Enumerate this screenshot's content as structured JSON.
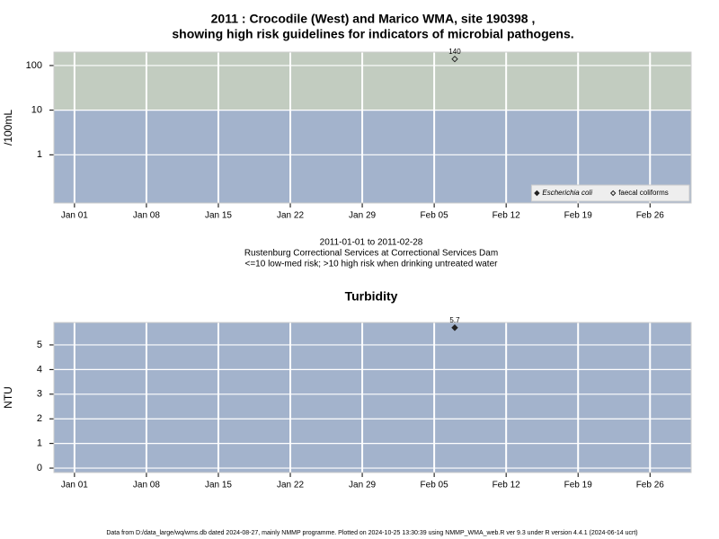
{
  "chart_data": [
    {
      "type": "scatter",
      "title": "2011 : Crocodile (West) and Marico WMA, site 190398 ,",
      "title2": "showing high risk guidelines for indicators of microbial pathogens.",
      "subtitle": [
        "2011-01-01 to 2011-02-28",
        "Rustenburg Correctional Services at Correctional Services Dam",
        "<=10 low-med risk; >10 high risk when drinking untreated water"
      ],
      "ylabel": "/100mL",
      "log_y": true,
      "x": [
        "2011-02-07"
      ],
      "series": [
        {
          "name": "Escherichia coli",
          "color": "#222222",
          "marker": "filled",
          "values": [
            null
          ]
        },
        {
          "name": "faecal coliforms",
          "color": "#222222",
          "marker": "open",
          "values": [
            140
          ]
        }
      ],
      "xlim": [
        "2010-12-30",
        "2011-03-02"
      ],
      "xticks": [
        {
          "value": "2011-01-01",
          "label": "Jan 01"
        },
        {
          "value": "2011-01-08",
          "label": "Jan 08"
        },
        {
          "value": "2011-01-15",
          "label": "Jan 15"
        },
        {
          "value": "2011-01-22",
          "label": "Jan 22"
        },
        {
          "value": "2011-01-29",
          "label": "Jan 29"
        },
        {
          "value": "2011-02-05",
          "label": "Feb 05"
        },
        {
          "value": "2011-02-12",
          "label": "Feb 12"
        },
        {
          "value": "2011-02-19",
          "label": "Feb 19"
        },
        {
          "value": "2011-02-26",
          "label": "Feb 26"
        }
      ],
      "ylim": [
        0.083,
        200
      ],
      "yticks": [
        1,
        10,
        100
      ],
      "threshold": 10,
      "plot_bg": "#a3b3cc",
      "above_color": "#c2ccc0",
      "grid": true,
      "legend": "bottom-right"
    },
    {
      "type": "scatter",
      "title": "Turbidity",
      "ylabel": "NTU",
      "log_y": false,
      "x": [
        "2011-02-07"
      ],
      "series": [
        {
          "color": "#222222",
          "marker": "filled",
          "values": [
            5.7
          ]
        }
      ],
      "xlim": [
        "2010-12-30",
        "2011-03-02"
      ],
      "xticks": [
        {
          "value": "2011-01-01",
          "label": "Jan 01"
        },
        {
          "value": "2011-01-08",
          "label": "Jan 08"
        },
        {
          "value": "2011-01-15",
          "label": "Jan 15"
        },
        {
          "value": "2011-01-22",
          "label": "Jan 22"
        },
        {
          "value": "2011-01-29",
          "label": "Jan 29"
        },
        {
          "value": "2011-02-05",
          "label": "Feb 05"
        },
        {
          "value": "2011-02-12",
          "label": "Feb 12"
        },
        {
          "value": "2011-02-19",
          "label": "Feb 19"
        },
        {
          "value": "2011-02-26",
          "label": "Feb 26"
        }
      ],
      "ylim": [
        -0.18,
        5.91
      ],
      "yticks": [
        0,
        1,
        2,
        3,
        4,
        5
      ],
      "plot_bg": "#a3b3cc",
      "grid": true,
      "footer": "Data from D:/data_large/wq/wms.db dated 2024-08-27, mainly NMMP programme. Plotted on 2024-10-25 13:30:39 using NMMP_WMA_web.R ver 9.3 under R version 4.4.1 (2024-06-14 ucrt)"
    }
  ]
}
